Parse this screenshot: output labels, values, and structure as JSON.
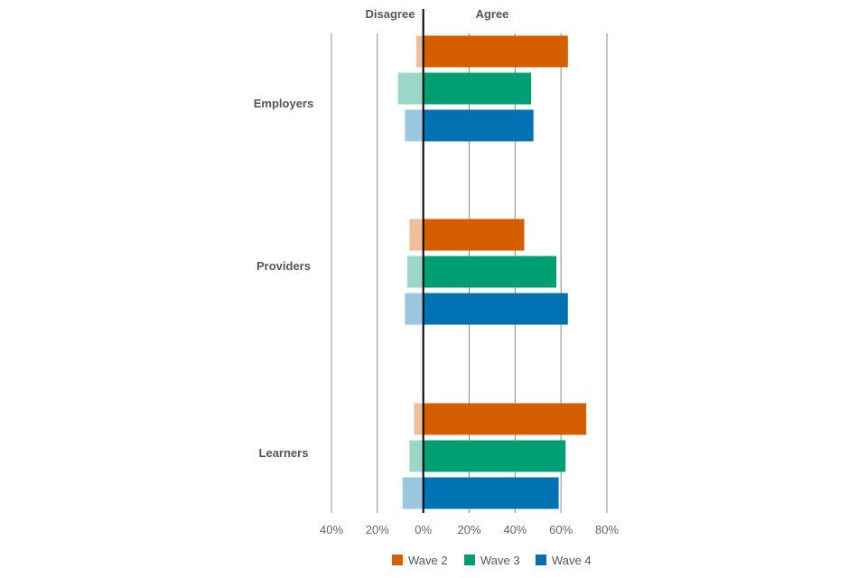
{
  "chart_data": {
    "type": "bar",
    "orientation": "horizontal-diverging",
    "categories": [
      "Employers",
      "Providers",
      "Learners"
    ],
    "negative_label": "Disagree",
    "positive_label": "Agree",
    "x_ticks": [
      -40,
      -20,
      0,
      20,
      40,
      60,
      80
    ],
    "x_tick_labels": [
      "40%",
      "20%",
      "0%",
      "20%",
      "40%",
      "60%",
      "80%"
    ],
    "xlim": [
      -40,
      80
    ],
    "grid": true,
    "legend_position": "bottom",
    "series": [
      {
        "name": "Wave 2",
        "color": "#D55E00",
        "light_color": "#F0BD9A",
        "agree": [
          63,
          44,
          71
        ],
        "disagree": [
          3,
          6,
          4
        ]
      },
      {
        "name": "Wave 3",
        "color": "#009E73",
        "light_color": "#99D8C7",
        "agree": [
          47,
          58,
          62
        ],
        "disagree": [
          11,
          7,
          6
        ]
      },
      {
        "name": "Wave 4",
        "color": "#0072B2",
        "light_color": "#99C7E0",
        "agree": [
          48,
          63,
          59
        ],
        "disagree": [
          8,
          8,
          9
        ]
      }
    ]
  }
}
